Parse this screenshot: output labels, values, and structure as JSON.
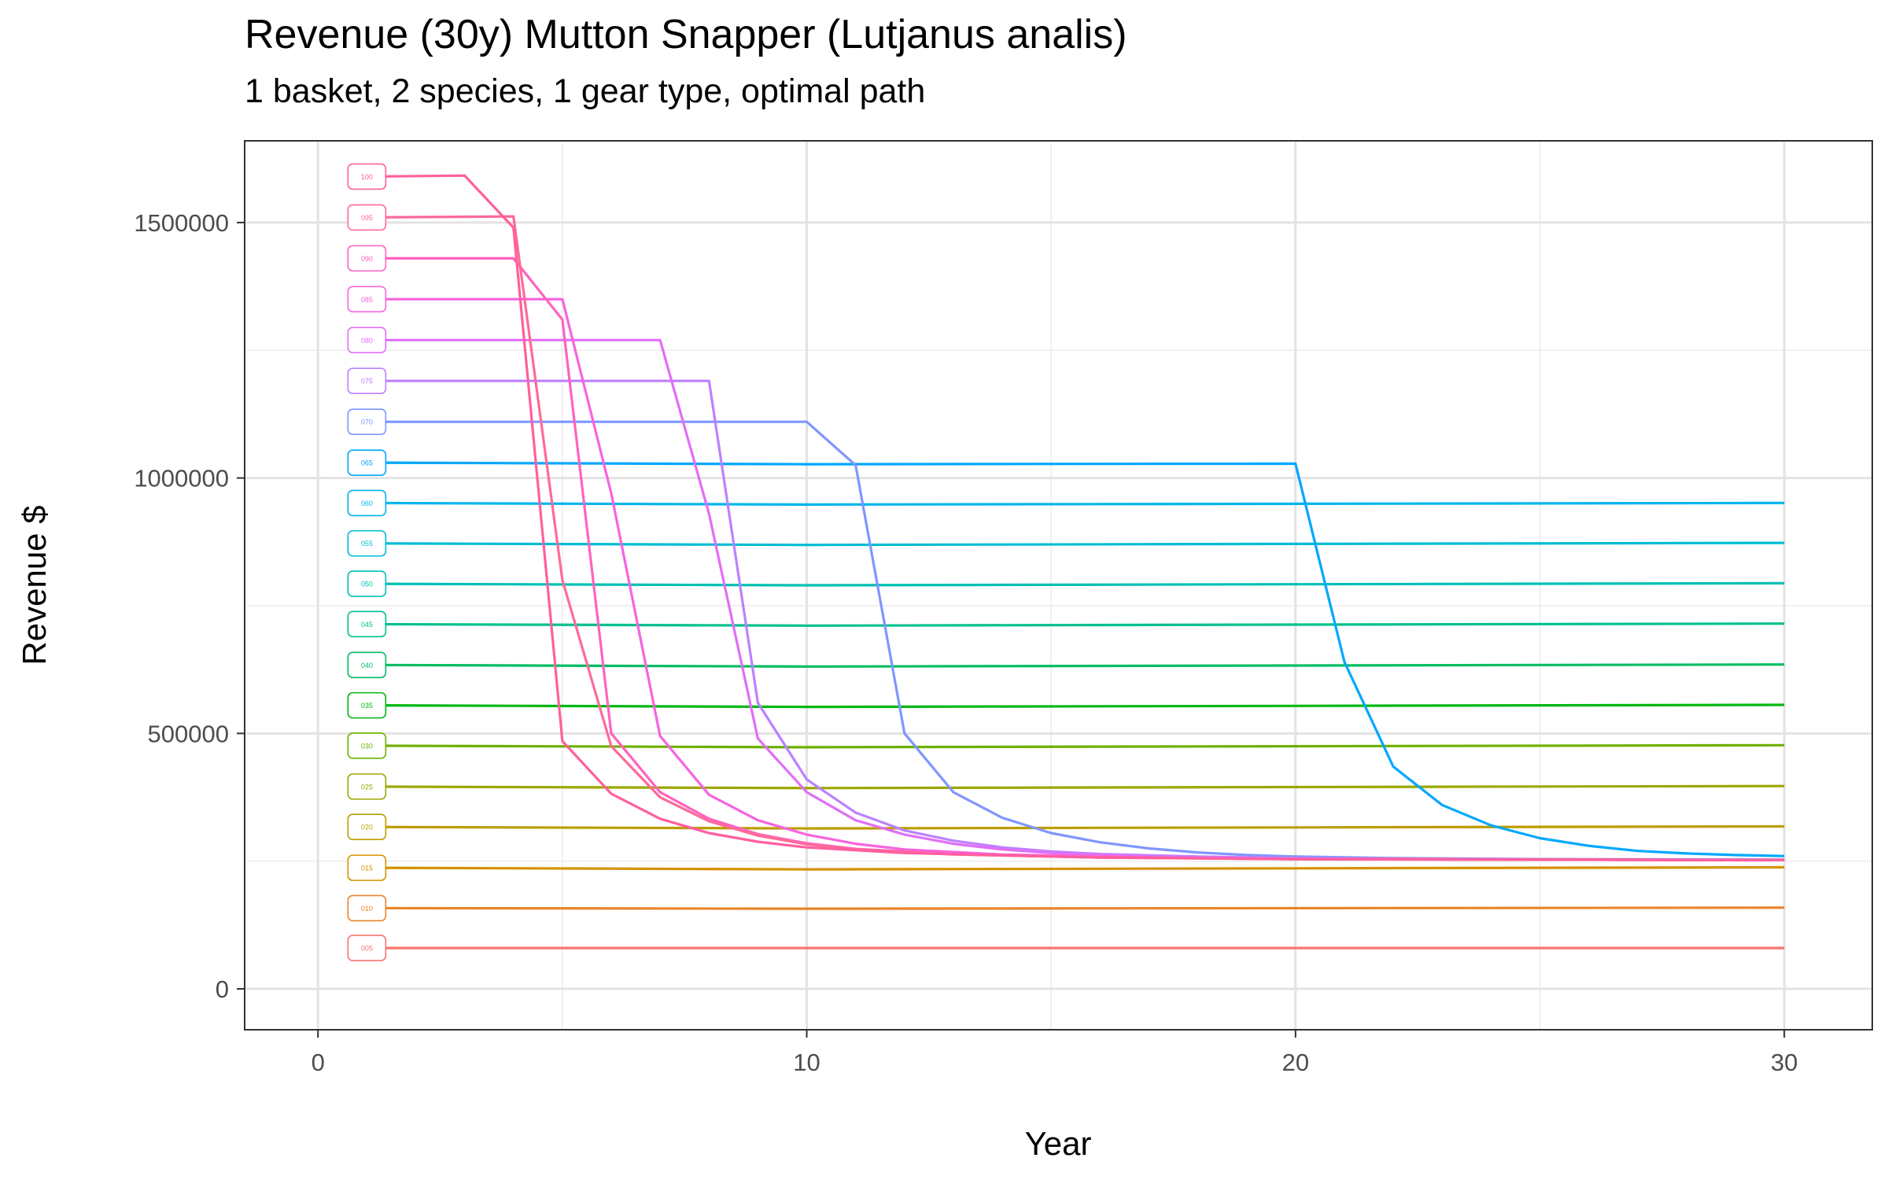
{
  "title": "Revenue (30y) Mutton Snapper (Lutjanus analis)",
  "subtitle": "1 basket, 2 species, 1 gear type, optimal path",
  "chart_data": {
    "type": "line",
    "xlabel": "Year",
    "ylabel": "Revenue $",
    "xlim": [
      -1.5,
      31.8
    ],
    "ylim": [
      -80000,
      1660000
    ],
    "x_ticks": [
      0,
      10,
      20,
      30
    ],
    "x_tick_labels": [
      "0",
      "10",
      "20",
      "30"
    ],
    "y_ticks": [
      0,
      500000,
      1000000,
      1500000
    ],
    "y_tick_labels": [
      "0",
      "500000",
      "1000000",
      "1500000"
    ],
    "grid": true,
    "legend": "none (series tagged at start of each line)",
    "series": [
      {
        "name": "005",
        "color": "#F8766D",
        "points": [
          [
            1,
            80000
          ],
          [
            30,
            80000
          ]
        ]
      },
      {
        "name": "010",
        "color": "#E9842C",
        "points": [
          [
            1,
            158000
          ],
          [
            10,
            157000
          ],
          [
            30,
            159000
          ]
        ]
      },
      {
        "name": "015",
        "color": "#D69100",
        "points": [
          [
            1,
            237000
          ],
          [
            10,
            234000
          ],
          [
            30,
            238000
          ]
        ]
      },
      {
        "name": "020",
        "color": "#BC9D00",
        "points": [
          [
            1,
            317000
          ],
          [
            10,
            314000
          ],
          [
            30,
            318000
          ]
        ]
      },
      {
        "name": "025",
        "color": "#9CA700",
        "points": [
          [
            1,
            396000
          ],
          [
            10,
            393000
          ],
          [
            30,
            397000
          ]
        ]
      },
      {
        "name": "030",
        "color": "#6FB000",
        "points": [
          [
            1,
            476000
          ],
          [
            10,
            473000
          ],
          [
            30,
            477000
          ]
        ]
      },
      {
        "name": "035",
        "color": "#00B813",
        "points": [
          [
            1,
            555000
          ],
          [
            10,
            552000
          ],
          [
            30,
            556000
          ]
        ]
      },
      {
        "name": "040",
        "color": "#00BD61",
        "points": [
          [
            1,
            634000
          ],
          [
            10,
            631000
          ],
          [
            30,
            635000
          ]
        ]
      },
      {
        "name": "045",
        "color": "#00C08E",
        "points": [
          [
            1,
            714000
          ],
          [
            10,
            711000
          ],
          [
            30,
            715000
          ]
        ]
      },
      {
        "name": "050",
        "color": "#00C0B4",
        "points": [
          [
            1,
            793000
          ],
          [
            10,
            790000
          ],
          [
            30,
            794000
          ]
        ]
      },
      {
        "name": "055",
        "color": "#00BDD4",
        "points": [
          [
            1,
            872000
          ],
          [
            10,
            869000
          ],
          [
            30,
            873000
          ]
        ]
      },
      {
        "name": "060",
        "color": "#00B5EE",
        "points": [
          [
            1,
            951000
          ],
          [
            10,
            948000
          ],
          [
            30,
            951000
          ]
        ]
      },
      {
        "name": "065",
        "color": "#00A7FF",
        "points": [
          [
            1,
            1030000
          ],
          [
            10,
            1027000
          ],
          [
            20,
            1028000
          ],
          [
            21,
            640000
          ],
          [
            22,
            435000
          ],
          [
            23,
            360000
          ],
          [
            24,
            320000
          ],
          [
            25,
            295000
          ],
          [
            26,
            280000
          ],
          [
            27,
            270000
          ],
          [
            28,
            265000
          ],
          [
            29,
            262000
          ],
          [
            30,
            260000
          ]
        ]
      },
      {
        "name": "070",
        "color": "#7F96FF",
        "points": [
          [
            1,
            1110000
          ],
          [
            10,
            1110000
          ],
          [
            11,
            1025000
          ],
          [
            12,
            500000
          ],
          [
            13,
            385000
          ],
          [
            14,
            335000
          ],
          [
            15,
            305000
          ],
          [
            16,
            287000
          ],
          [
            17,
            275000
          ],
          [
            18,
            267000
          ],
          [
            19,
            262000
          ],
          [
            20,
            259000
          ],
          [
            22,
            256000
          ],
          [
            25,
            254000
          ],
          [
            30,
            253000
          ]
        ]
      },
      {
        "name": "075",
        "color": "#BC81FF",
        "points": [
          [
            1,
            1190000
          ],
          [
            8,
            1190000
          ],
          [
            9,
            560000
          ],
          [
            10,
            410000
          ],
          [
            11,
            345000
          ],
          [
            12,
            310000
          ],
          [
            13,
            290000
          ],
          [
            14,
            277000
          ],
          [
            15,
            269000
          ],
          [
            16,
            264000
          ],
          [
            18,
            259000
          ],
          [
            20,
            256000
          ],
          [
            25,
            253000
          ],
          [
            30,
            252000
          ]
        ]
      },
      {
        "name": "080",
        "color": "#E26EF7",
        "points": [
          [
            1,
            1270000
          ],
          [
            7,
            1270000
          ],
          [
            8,
            930000
          ],
          [
            9,
            490000
          ],
          [
            10,
            385000
          ],
          [
            11,
            330000
          ],
          [
            12,
            302000
          ],
          [
            13,
            284000
          ],
          [
            14,
            273000
          ],
          [
            15,
            266000
          ],
          [
            17,
            259000
          ],
          [
            20,
            255000
          ],
          [
            30,
            252000
          ]
        ]
      },
      {
        "name": "085",
        "color": "#F863DF",
        "points": [
          [
            1,
            1350000
          ],
          [
            5,
            1350000
          ],
          [
            6,
            970000
          ],
          [
            7,
            495000
          ],
          [
            8,
            380000
          ],
          [
            9,
            330000
          ],
          [
            10,
            302000
          ],
          [
            11,
            284000
          ],
          [
            12,
            273000
          ],
          [
            14,
            263000
          ],
          [
            17,
            257000
          ],
          [
            20,
            254000
          ],
          [
            30,
            252000
          ]
        ]
      },
      {
        "name": "090",
        "color": "#FF62BF",
        "points": [
          [
            1,
            1430000
          ],
          [
            4,
            1430000
          ],
          [
            5,
            1310000
          ],
          [
            6,
            500000
          ],
          [
            7,
            385000
          ],
          [
            8,
            333000
          ],
          [
            9,
            303000
          ],
          [
            10,
            285000
          ],
          [
            11,
            274000
          ],
          [
            13,
            264000
          ],
          [
            16,
            257000
          ],
          [
            20,
            254000
          ],
          [
            30,
            252000
          ]
        ]
      },
      {
        "name": "095",
        "color": "#FF6A98",
        "points": [
          [
            1,
            1510000
          ],
          [
            4,
            1512000
          ],
          [
            5,
            800000
          ],
          [
            6,
            475000
          ],
          [
            7,
            375000
          ],
          [
            8,
            328000
          ],
          [
            9,
            300000
          ],
          [
            10,
            283000
          ],
          [
            11,
            273000
          ],
          [
            13,
            263000
          ],
          [
            16,
            257000
          ],
          [
            20,
            254000
          ],
          [
            30,
            252000
          ]
        ]
      },
      {
        "name": "100",
        "color": "#FF5F9E",
        "points": [
          [
            1,
            1590000
          ],
          [
            3,
            1592000
          ],
          [
            4,
            1490000
          ],
          [
            5,
            485000
          ],
          [
            6,
            382000
          ],
          [
            7,
            333000
          ],
          [
            8,
            305000
          ],
          [
            9,
            288000
          ],
          [
            10,
            277000
          ],
          [
            12,
            266000
          ],
          [
            15,
            259000
          ],
          [
            20,
            254000
          ],
          [
            30,
            252000
          ]
        ]
      }
    ]
  }
}
